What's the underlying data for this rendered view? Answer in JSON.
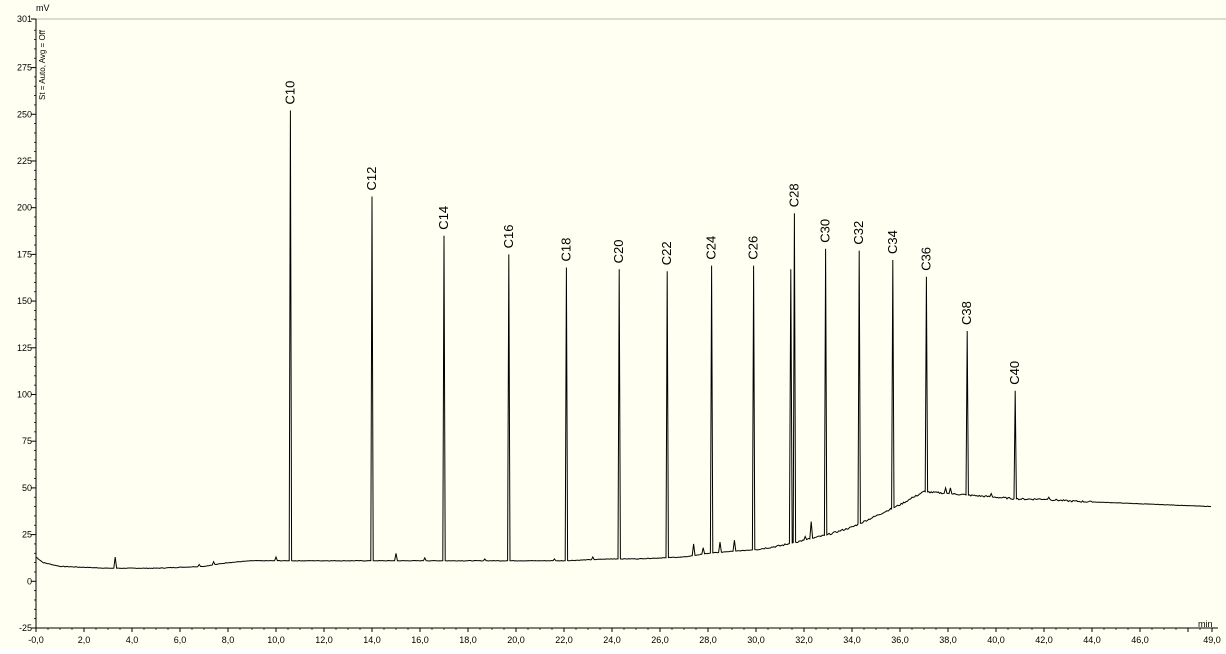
{
  "chart_data": {
    "type": "line",
    "title": "",
    "xlabel": "min",
    "ylabel": "mV",
    "side_note": "St = Auto, Avg = Off",
    "xlim": [
      0,
      49
    ],
    "ylim": [
      -25,
      301
    ],
    "grid": false,
    "x_ticks": [
      0,
      2,
      4,
      6,
      8,
      10,
      12,
      14,
      16,
      18,
      20,
      22,
      24,
      26,
      28,
      30,
      32,
      34,
      36,
      38,
      40,
      42,
      44,
      46,
      48,
      49
    ],
    "x_tick_labels": [
      "-0,0",
      "2,0",
      "4,0",
      "6,0",
      "8,0",
      "10,0",
      "12,0",
      "14,0",
      "16,0",
      "18,0",
      "20,0",
      "22,0",
      "24,0",
      "26,0",
      "28,0",
      "30,0",
      "32,0",
      "34,0",
      "36,0",
      "38,0",
      "40,0",
      "42,0",
      "44,0",
      "46,0",
      "",
      "49,0"
    ],
    "y_ticks": [
      -25,
      0,
      25,
      50,
      75,
      100,
      125,
      150,
      175,
      200,
      225,
      250,
      275,
      301
    ],
    "y_tick_labels": [
      "-25",
      "0",
      "25",
      "50",
      "75",
      "100",
      "125",
      "150",
      "175",
      "200",
      "225",
      "250",
      "275",
      "301"
    ],
    "baseline": {
      "x": [
        0,
        0.3,
        1,
        2,
        3,
        4,
        5,
        6,
        7,
        8,
        9,
        10,
        11,
        12,
        13,
        14,
        15,
        16,
        17,
        18,
        19,
        20,
        21,
        22,
        23,
        24,
        25,
        26,
        27,
        28,
        29,
        30,
        31,
        32,
        33,
        34,
        35,
        36,
        37,
        38,
        39,
        40,
        41,
        42,
        43,
        44,
        45,
        46,
        47,
        48,
        49
      ],
      "y": [
        13,
        10,
        8,
        7.5,
        7,
        7,
        7,
        7.5,
        8,
        10,
        11,
        11,
        11,
        11,
        11,
        11,
        11,
        11,
        11,
        11,
        11,
        11,
        11,
        11,
        11.5,
        12,
        12,
        12.5,
        13,
        15,
        16,
        17,
        19,
        22,
        25,
        29,
        35,
        41,
        48,
        47,
        46,
        45,
        44,
        44,
        43,
        42.5,
        42,
        41.5,
        41,
        40.5,
        40
      ]
    },
    "peaks": [
      {
        "label": "C10",
        "x": 10.6,
        "y": 252
      },
      {
        "label": "C12",
        "x": 14.0,
        "y": 206
      },
      {
        "label": "C14",
        "x": 17.0,
        "y": 185
      },
      {
        "label": "C16",
        "x": 19.7,
        "y": 175
      },
      {
        "label": "C18",
        "x": 22.1,
        "y": 168
      },
      {
        "label": "C20",
        "x": 24.3,
        "y": 167
      },
      {
        "label": "C22",
        "x": 26.3,
        "y": 166
      },
      {
        "label": "C24",
        "x": 28.15,
        "y": 169
      },
      {
        "label": "C26",
        "x": 29.9,
        "y": 169
      },
      {
        "label": "C28",
        "x": 31.6,
        "y": 197
      },
      {
        "label": "C30",
        "x": 32.9,
        "y": 178
      },
      {
        "label": "C32",
        "x": 34.3,
        "y": 177
      },
      {
        "label": "C34",
        "x": 35.7,
        "y": 172
      },
      {
        "label": "C36",
        "x": 37.1,
        "y": 163
      },
      {
        "label": "C38",
        "x": 38.8,
        "y": 134
      },
      {
        "label": "C40",
        "x": 40.8,
        "y": 102
      }
    ],
    "minor_peaks": [
      {
        "x": 3.3,
        "y": 13
      },
      {
        "x": 6.8,
        "y": 9
      },
      {
        "x": 7.4,
        "y": 10.5
      },
      {
        "x": 10.0,
        "y": 13
      },
      {
        "x": 15.0,
        "y": 15
      },
      {
        "x": 16.2,
        "y": 12.5
      },
      {
        "x": 18.7,
        "y": 12
      },
      {
        "x": 21.6,
        "y": 12
      },
      {
        "x": 23.2,
        "y": 13
      },
      {
        "x": 27.4,
        "y": 20
      },
      {
        "x": 27.8,
        "y": 18
      },
      {
        "x": 28.5,
        "y": 21
      },
      {
        "x": 29.1,
        "y": 22
      },
      {
        "x": 31.45,
        "y": 167
      },
      {
        "x": 32.3,
        "y": 32
      },
      {
        "x": 32.05,
        "y": 24
      },
      {
        "x": 36.5,
        "y": 45
      },
      {
        "x": 37.9,
        "y": 50
      },
      {
        "x": 38.1,
        "y": 50
      },
      {
        "x": 39.8,
        "y": 47
      },
      {
        "x": 42.2,
        "y": 45
      }
    ],
    "line_color": "#000000"
  }
}
